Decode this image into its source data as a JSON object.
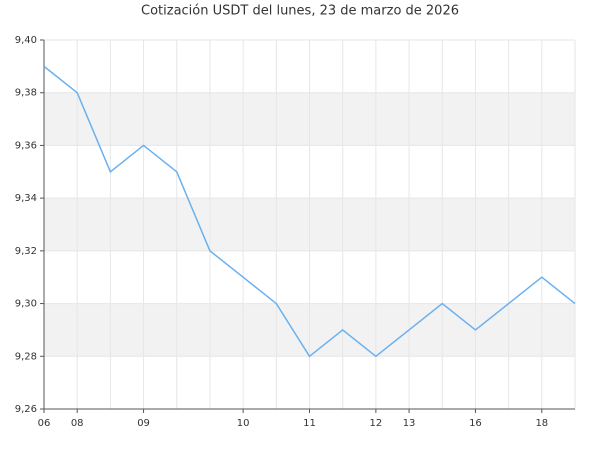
{
  "chart_data": {
    "type": "line",
    "title": "Cotización USDT del lunes, 23 de marzo de 2026",
    "categories": [
      "06",
      "08",
      null,
      "09",
      null,
      null,
      "10",
      null,
      "11",
      null,
      "12",
      "13",
      null,
      "16",
      null,
      "18",
      null
    ],
    "series": [
      {
        "name": "USDT",
        "color": "#6ab0ef",
        "values": [
          9.39,
          9.38,
          9.35,
          9.36,
          9.35,
          9.32,
          9.31,
          9.3,
          9.28,
          9.29,
          9.28,
          9.29,
          9.3,
          9.29,
          9.3,
          9.31,
          9.3
        ]
      }
    ],
    "ylim": [
      9.26,
      9.4
    ],
    "yticks": [
      {
        "value": 9.26,
        "label": "9,26"
      },
      {
        "value": 9.28,
        "label": "9,28"
      },
      {
        "value": 9.3,
        "label": "9,30"
      },
      {
        "value": 9.32,
        "label": "9,32"
      },
      {
        "value": 9.34,
        "label": "9,34"
      },
      {
        "value": 9.36,
        "label": "9,36"
      },
      {
        "value": 9.38,
        "label": "9,38"
      },
      {
        "value": 9.4,
        "label": "9,40"
      }
    ],
    "grid": true
  }
}
